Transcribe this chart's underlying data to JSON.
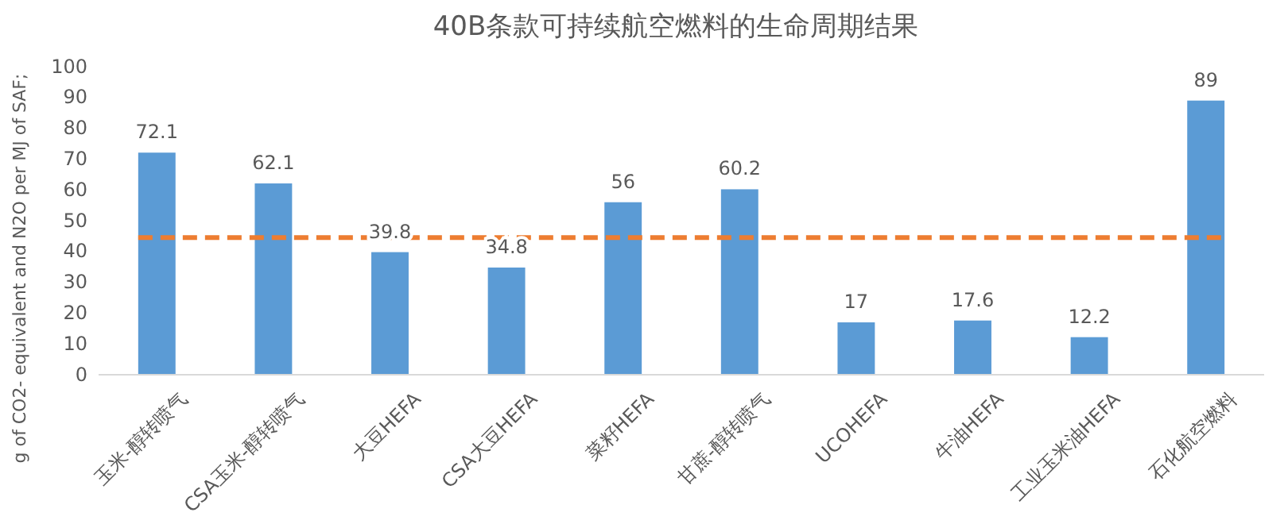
{
  "chart_data": {
    "type": "bar",
    "title": "40B条款可持续航空燃料的生命周期结果",
    "ylabel": "g of CO2- equivalent and N2O per MJ of SAF;",
    "categories": [
      "玉米-醇转喷气",
      "CSA玉米-醇转喷气",
      "大豆HEFA",
      "CSA大豆HEFA",
      "菜籽HEFA",
      "甘蔗-醇转喷气",
      "UCOHEFA",
      "牛油HEFA",
      "工业玉米油HEFA",
      "石化航空燃料"
    ],
    "values": [
      72.1,
      62.1,
      39.8,
      34.8,
      56,
      60.2,
      17,
      17.6,
      12.2,
      89
    ],
    "color": "#5b9bd5",
    "ylim": [
      0,
      100
    ],
    "yticks": [
      0,
      10,
      20,
      30,
      40,
      50,
      60,
      70,
      80,
      90,
      100
    ],
    "grid": false,
    "data_labels": true,
    "ref_lines": [
      {
        "axis": "y",
        "value": 44.5,
        "color": "#ed7d31",
        "line_style": "dashed"
      }
    ]
  }
}
